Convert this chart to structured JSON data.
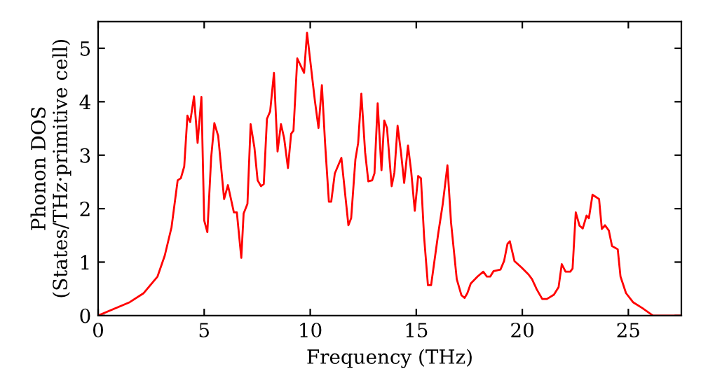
{
  "chart_data": {
    "type": "line",
    "xlabel": "Frequency (THz)",
    "ylabel": "Phonon DOS\n(States/THz·primitive cell)",
    "xlim": [
      0,
      27.5
    ],
    "ylim": [
      0,
      5.5
    ],
    "xticks": [
      0,
      5,
      10,
      15,
      20,
      25
    ],
    "yticks": [
      0,
      1,
      2,
      3,
      4,
      5
    ],
    "grid": false,
    "legend": false,
    "marker": "none",
    "line_style": "solid",
    "series": [
      {
        "color": "#ff0000",
        "x": [
          0,
          1.49,
          2.15,
          2.8,
          3.14,
          3.46,
          3.75,
          3.9,
          4.06,
          4.21,
          4.34,
          4.52,
          4.69,
          4.87,
          5.0,
          5.15,
          5.33,
          5.48,
          5.66,
          5.94,
          6.12,
          6.4,
          6.54,
          6.75,
          6.86,
          7.04,
          7.19,
          7.37,
          7.52,
          7.68,
          7.81,
          7.96,
          8.11,
          8.29,
          8.46,
          8.62,
          8.77,
          8.95,
          9.1,
          9.21,
          9.39,
          9.71,
          9.85,
          10.22,
          10.39,
          10.55,
          10.7,
          10.88,
          10.99,
          11.16,
          11.47,
          11.8,
          11.93,
          12.13,
          12.26,
          12.41,
          12.59,
          12.74,
          12.92,
          13.03,
          13.18,
          13.36,
          13.49,
          13.62,
          13.84,
          13.97,
          14.12,
          14.28,
          14.43,
          14.61,
          14.76,
          14.93,
          15.09,
          15.22,
          15.37,
          15.55,
          15.7,
          16.03,
          16.25,
          16.47,
          16.64,
          16.91,
          17.13,
          17.28,
          17.41,
          17.57,
          17.89,
          18.16,
          18.33,
          18.49,
          18.64,
          18.97,
          19.14,
          19.3,
          19.41,
          19.63,
          19.96,
          20.29,
          20.46,
          20.68,
          20.94,
          21.16,
          21.49,
          21.71,
          21.86,
          22.04,
          22.26,
          22.37,
          22.52,
          22.7,
          22.85,
          23.03,
          23.14,
          23.31,
          23.62,
          23.75,
          23.9,
          24.08,
          24.23,
          24.5,
          24.63,
          24.89,
          25.22,
          25.66,
          26.16,
          27.5
        ],
        "values": [
          0,
          0.25,
          0.42,
          0.73,
          1.12,
          1.65,
          2.53,
          2.57,
          2.79,
          3.74,
          3.62,
          4.1,
          3.23,
          4.09,
          1.78,
          1.56,
          2.96,
          3.6,
          3.36,
          2.18,
          2.44,
          1.93,
          1.93,
          1.08,
          1.91,
          2.09,
          3.58,
          3.14,
          2.53,
          2.42,
          2.46,
          3.68,
          3.82,
          4.54,
          3.07,
          3.58,
          3.32,
          2.76,
          3.4,
          3.46,
          4.81,
          4.54,
          5.29,
          4.02,
          3.51,
          4.31,
          3.23,
          2.13,
          2.13,
          2.66,
          2.95,
          1.69,
          1.82,
          2.92,
          3.23,
          4.15,
          3.05,
          2.51,
          2.53,
          2.66,
          3.97,
          2.72,
          3.65,
          3.51,
          2.42,
          2.68,
          3.55,
          3.05,
          2.48,
          3.18,
          2.7,
          1.96,
          2.61,
          2.57,
          1.47,
          0.57,
          0.57,
          1.52,
          2.09,
          2.81,
          1.74,
          0.68,
          0.38,
          0.33,
          0.42,
          0.6,
          0.73,
          0.82,
          0.73,
          0.73,
          0.83,
          0.86,
          1.02,
          1.34,
          1.39,
          1.02,
          0.9,
          0.77,
          0.68,
          0.49,
          0.31,
          0.31,
          0.39,
          0.53,
          0.96,
          0.82,
          0.82,
          0.88,
          1.93,
          1.68,
          1.63,
          1.87,
          1.82,
          2.26,
          2.18,
          1.62,
          1.69,
          1.59,
          1.3,
          1.24,
          0.73,
          0.42,
          0.25,
          0.14,
          0,
          0
        ]
      }
    ]
  }
}
